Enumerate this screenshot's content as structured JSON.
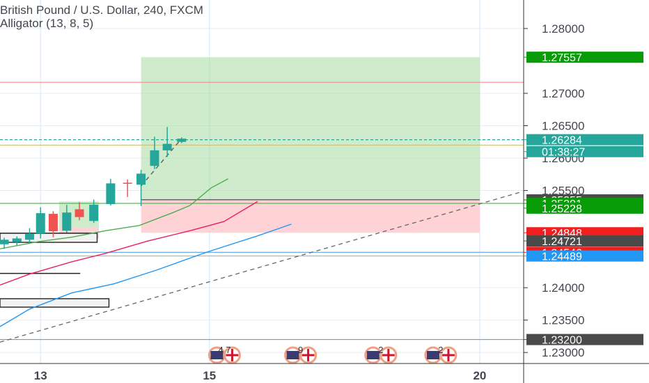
{
  "header": {
    "title": "British Pound / U.S. Dollar, 240, FXCM",
    "indicator": "Alligator (13, 8, 5)"
  },
  "chart_data": {
    "type": "candlestick",
    "ylim": [
      1.2283,
      1.2844
    ],
    "y_ticks": [
      {
        "value": 1.28,
        "label": "1.28000"
      },
      {
        "value": 1.27,
        "label": "1.27000"
      },
      {
        "value": 1.265,
        "label": "1.26500"
      },
      {
        "value": 1.26,
        "label": "1.26000"
      },
      {
        "value": 1.255,
        "label": "1.25500"
      },
      {
        "value": 1.24,
        "label": "1.24000"
      },
      {
        "value": 1.235,
        "label": "1.23500"
      },
      {
        "value": 1.23,
        "label": "1.23000"
      }
    ],
    "x_ticks": [
      {
        "x": 4.3,
        "label": "13"
      },
      {
        "x": 24.3,
        "label": "15"
      },
      {
        "x": 56.3,
        "label": "20"
      }
    ],
    "candles": [
      {
        "x": 0.0,
        "o": 1.2467,
        "h": 1.2477,
        "l": 1.246,
        "c": 1.2474
      },
      {
        "x": 1.5,
        "o": 1.2471,
        "h": 1.2479,
        "l": 1.2465,
        "c": 1.2476
      },
      {
        "x": 3.0,
        "o": 1.2474,
        "h": 1.2492,
        "l": 1.2468,
        "c": 1.2483
      },
      {
        "x": 4.3,
        "o": 1.2484,
        "h": 1.2524,
        "l": 1.2476,
        "c": 1.2515
      },
      {
        "x": 5.8,
        "o": 1.2514,
        "h": 1.2518,
        "l": 1.2478,
        "c": 1.2487
      },
      {
        "x": 7.4,
        "o": 1.2488,
        "h": 1.2528,
        "l": 1.2485,
        "c": 1.2516
      },
      {
        "x": 8.9,
        "o": 1.2521,
        "h": 1.2532,
        "l": 1.2504,
        "c": 1.2509
      },
      {
        "x": 10.6,
        "o": 1.2503,
        "h": 1.2536,
        "l": 1.25,
        "c": 1.2528
      },
      {
        "x": 12.6,
        "o": 1.2529,
        "h": 1.2568,
        "l": 1.2527,
        "c": 1.2561
      },
      {
        "x": 14.6,
        "o": 1.2562,
        "h": 1.2567,
        "l": 1.254,
        "c": 1.2561
      },
      {
        "x": 16.2,
        "o": 1.2559,
        "h": 1.2582,
        "l": 1.2526,
        "c": 1.2576
      },
      {
        "x": 17.8,
        "o": 1.2588,
        "h": 1.2633,
        "l": 1.2583,
        "c": 1.2612
      },
      {
        "x": 19.3,
        "o": 1.2612,
        "h": 1.2648,
        "l": 1.2602,
        "c": 1.2622
      },
      {
        "x": 21.0,
        "o": 1.2625,
        "h": 1.2632,
        "l": 1.2623,
        "c": 1.263
      }
    ],
    "alligator": [
      {
        "name": "jaw",
        "color": "#2196f3",
        "points": [
          [
            -0.5,
            1.234
          ],
          [
            3,
            1.2367
          ],
          [
            8,
            1.2392
          ],
          [
            13,
            1.2406
          ],
          [
            18,
            1.2427
          ],
          [
            24,
            1.2455
          ],
          [
            30,
            1.248
          ],
          [
            34,
            1.2498
          ]
        ]
      },
      {
        "name": "teeth",
        "color": "#e91e63",
        "points": [
          [
            -0.5,
            1.2404
          ],
          [
            3,
            1.2421
          ],
          [
            8,
            1.244
          ],
          [
            12,
            1.2453
          ],
          [
            17,
            1.2472
          ],
          [
            22,
            1.2488
          ],
          [
            26,
            1.2502
          ],
          [
            30,
            1.2533
          ]
        ]
      },
      {
        "name": "lips",
        "color": "#4caf50",
        "points": [
          [
            -0.5,
            1.246
          ],
          [
            4,
            1.2471
          ],
          [
            8,
            1.2478
          ],
          [
            12,
            1.2488
          ],
          [
            16,
            1.2496
          ],
          [
            20,
            1.2516
          ],
          [
            22,
            1.2527
          ],
          [
            24.5,
            1.2554
          ],
          [
            26.5,
            1.2568
          ]
        ]
      }
    ],
    "position": {
      "x_start": 16.2,
      "x_end": 56.3,
      "target": 1.27557,
      "entry": 1.25355,
      "stop": 1.24848,
      "box_entry": [
        6.5,
        11.2,
        1.2493,
        1.2533
      ],
      "box_stop": [
        6.5,
        11.2,
        1.24755,
        1.2493
      ]
    },
    "trend_lines": [
      {
        "name": "dashed-trend",
        "points": [
          [
            -0.5,
            1.2316
          ],
          [
            61,
            1.2547
          ]
        ],
        "color": "#666666",
        "dash": true
      },
      {
        "name": "entry-dashed-trend",
        "points": [
          [
            16.2,
            1.2557
          ],
          [
            21.0,
            1.263
          ]
        ],
        "color": "#555555",
        "dash": true
      }
    ],
    "horizontal_lines": [
      {
        "name": "red-resistance",
        "value": 1.2717,
        "color": "#f28b8b",
        "x_end": 61
      },
      {
        "name": "price-dotted",
        "value": 1.26284,
        "color": "#26a69a",
        "x_end": 61,
        "dash": true
      },
      {
        "name": "olive-level",
        "value": 1.262,
        "color": "#c9c27c",
        "x_end": 61
      },
      {
        "name": "green-support",
        "value": 1.25301,
        "color": "#4caf50",
        "x_end": 61
      },
      {
        "name": "blue-support-upper",
        "value": 1.24546,
        "color": "#5aa3e8",
        "x_end": 61
      },
      {
        "name": "teal-support",
        "value": 1.2449,
        "color": "#7dcea0",
        "x_end": 61
      },
      {
        "name": "blue-support-low",
        "value": 1.232,
        "color": "#5aa3e8",
        "x_end": 61
      }
    ],
    "short_levels": [
      {
        "name": "black-level-mid",
        "value": 1.2422,
        "x_start": -0.5,
        "x_end": 9.0
      },
      {
        "name": "black-level-box1",
        "value": 1.2484,
        "x_start": -0.5,
        "x_end": 11.0
      }
    ],
    "rect_boxes": [
      {
        "name": "range-box-upper",
        "x_start": -0.5,
        "x_end": 11.0,
        "top": 1.2484,
        "bottom": 1.247
      },
      {
        "name": "range-box-lower",
        "x_start": -0.5,
        "x_end": 12.4,
        "top": 1.2383,
        "bottom": 1.237
      }
    ],
    "price_badges": [
      {
        "value": 1.27557,
        "label": "1.27557",
        "color": "#089c08"
      },
      {
        "value": 1.26284,
        "label": "1.26284",
        "color": "#26a69a"
      },
      {
        "value": 1.261,
        "label": "01:38:27",
        "color": "#26a69a"
      },
      {
        "value": 1.25355,
        "label": "1.25355",
        "color": "#4a4a4a"
      },
      {
        "value": 1.25301,
        "label": "1.25301",
        "color": "#089c08"
      },
      {
        "value": 1.25228,
        "label": "1.25228",
        "color": "#089c08"
      },
      {
        "value": 1.24848,
        "label": "1.24848",
        "color": "#f01e1e"
      },
      {
        "value": 1.24721,
        "label": "1.24721",
        "color": "#4a4a4a"
      },
      {
        "value": 1.24546,
        "label": "1.24546",
        "color": "#f01e1e"
      },
      {
        "value": 1.24489,
        "label": "1.24489",
        "color": "#2196f3"
      },
      {
        "value": 1.232,
        "label": "1.23200",
        "color": "#4a4a4a"
      }
    ],
    "events": [
      {
        "x": 26.0,
        "count": "4 7"
      },
      {
        "x": 35.0,
        "count": "9"
      },
      {
        "x": 44.5,
        "count": "2"
      },
      {
        "x": 51.6,
        "count": "2"
      }
    ]
  },
  "colors": {
    "up": "#26a69a",
    "down": "#ef5350",
    "grid": "#e7ebef",
    "axis_border": "#333333",
    "target_zone": "#a5dca0",
    "stop_zone": "#ffcdd2"
  }
}
